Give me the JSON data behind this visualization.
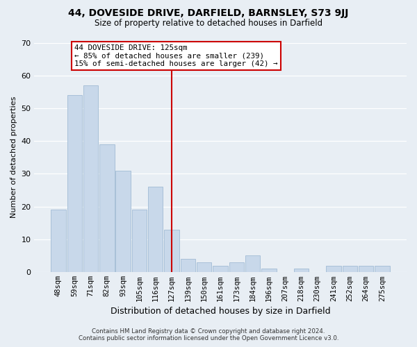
{
  "title": "44, DOVESIDE DRIVE, DARFIELD, BARNSLEY, S73 9JJ",
  "subtitle": "Size of property relative to detached houses in Darfield",
  "xlabel": "Distribution of detached houses by size in Darfield",
  "ylabel": "Number of detached properties",
  "categories": [
    "48sqm",
    "59sqm",
    "71sqm",
    "82sqm",
    "93sqm",
    "105sqm",
    "116sqm",
    "127sqm",
    "139sqm",
    "150sqm",
    "161sqm",
    "173sqm",
    "184sqm",
    "196sqm",
    "207sqm",
    "218sqm",
    "230sqm",
    "241sqm",
    "252sqm",
    "264sqm",
    "275sqm"
  ],
  "values": [
    19,
    54,
    57,
    39,
    31,
    19,
    26,
    13,
    4,
    3,
    2,
    3,
    5,
    1,
    0,
    1,
    0,
    2,
    2,
    2,
    2
  ],
  "bar_color": "#c8d8ea",
  "bar_edge_color": "#a8c0d8",
  "highlight_index": 7,
  "highlight_line_color": "#cc0000",
  "annotation_title": "44 DOVESIDE DRIVE: 125sqm",
  "annotation_line1": "← 85% of detached houses are smaller (239)",
  "annotation_line2": "15% of semi-detached houses are larger (42) →",
  "annotation_box_color": "#ffffff",
  "annotation_box_edge_color": "#cc0000",
  "ylim": [
    0,
    70
  ],
  "yticks": [
    0,
    10,
    20,
    30,
    40,
    50,
    60,
    70
  ],
  "background_color": "#e8eef4",
  "grid_color": "#ffffff",
  "footer_line1": "Contains HM Land Registry data © Crown copyright and database right 2024.",
  "footer_line2": "Contains public sector information licensed under the Open Government Licence v3.0."
}
